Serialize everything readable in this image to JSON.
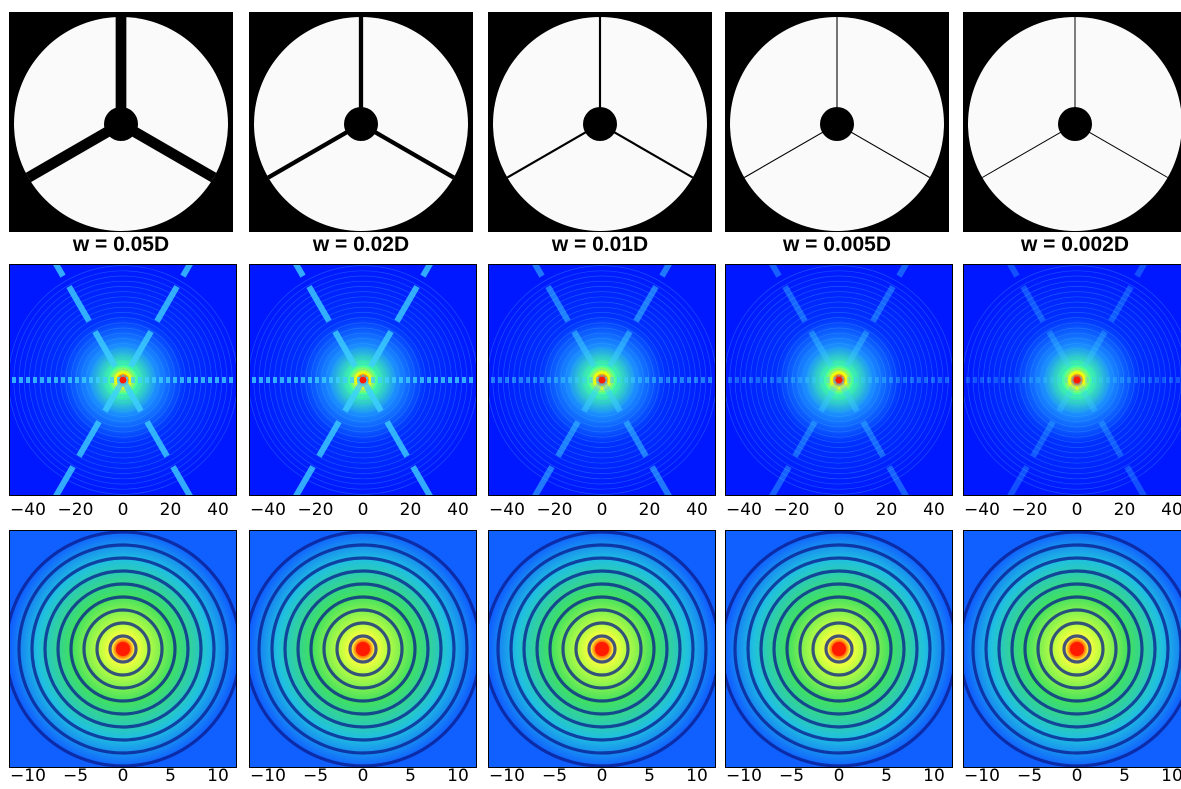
{
  "panels": [
    {
      "label": "w = 0.05D",
      "width_fraction": 0.05
    },
    {
      "label": "w = 0.02D",
      "width_fraction": 0.02
    },
    {
      "label": "w = 0.01D",
      "width_fraction": 0.01
    },
    {
      "label": "w = 0.005D",
      "width_fraction": 0.005
    },
    {
      "label": "w = 0.002D",
      "width_fraction": 0.002
    }
  ],
  "axis_wide": {
    "ticks": [
      "−40",
      "−20",
      "0",
      "20",
      "40"
    ],
    "values": [
      -40,
      -20,
      0,
      20,
      40
    ],
    "range": [
      -48,
      48
    ]
  },
  "axis_zoom": {
    "ticks": [
      "−10",
      "−5",
      "0",
      "5",
      "10"
    ],
    "values": [
      -10,
      -5,
      0,
      5,
      10
    ],
    "range": [
      -12,
      12
    ]
  },
  "colors": {
    "background": "#0015ff",
    "spike": "#3dd0ff",
    "core": "#ff1a00",
    "pupil": "#fafafa",
    "obscuration": "#000000"
  }
}
